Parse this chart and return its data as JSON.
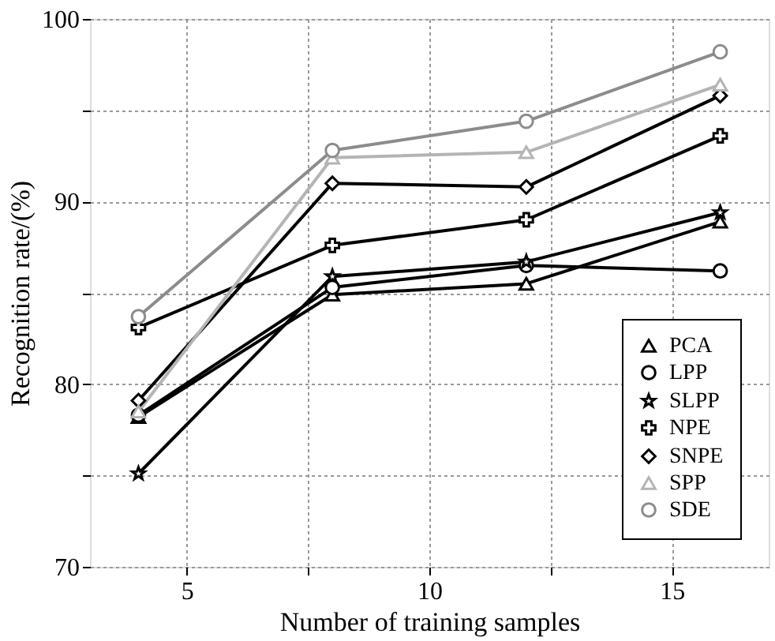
{
  "chart_data": {
    "type": "line",
    "xlabel": "Number of training samples",
    "ylabel": "Recognition rate/(%)",
    "x": [
      4,
      8,
      12,
      16
    ],
    "series": [
      {
        "name": "PCA",
        "color": "#000000",
        "marker": "triangle",
        "values": [
          78.2,
          84.9,
          85.5,
          88.9
        ]
      },
      {
        "name": "LPP",
        "color": "#000000",
        "marker": "circle",
        "values": [
          78.3,
          85.3,
          86.5,
          86.2
        ]
      },
      {
        "name": "SLPP",
        "color": "#000000",
        "marker": "star",
        "values": [
          75.1,
          85.9,
          86.7,
          89.4
        ]
      },
      {
        "name": "NPE",
        "color": "#000000",
        "marker": "cross",
        "values": [
          83.1,
          87.6,
          89.0,
          93.6
        ]
      },
      {
        "name": "SNPE",
        "color": "#000000",
        "marker": "diamond",
        "values": [
          79.1,
          91.0,
          90.8,
          95.8
        ]
      },
      {
        "name": "SPP",
        "color": "#b4b4b4",
        "marker": "triangle",
        "values": [
          78.5,
          92.4,
          92.7,
          96.4
        ]
      },
      {
        "name": "SDE",
        "color": "#8c8c8c",
        "marker": "circle",
        "values": [
          83.7,
          92.8,
          94.4,
          98.2
        ]
      }
    ],
    "xlim": [
      3,
      17
    ],
    "xticks": [
      5,
      {
        "value": 7.5,
        "label": null
      },
      10,
      {
        "value": 12.5,
        "label": null
      },
      15
    ],
    "ylim": [
      70,
      100
    ],
    "yticks": [
      70,
      {
        "value": 75,
        "label": null
      },
      80,
      {
        "value": 85,
        "label": null
      },
      90,
      {
        "value": 95,
        "label": null
      },
      100
    ],
    "grid": true,
    "legend": "bottom right",
    "line_style": "solid"
  }
}
